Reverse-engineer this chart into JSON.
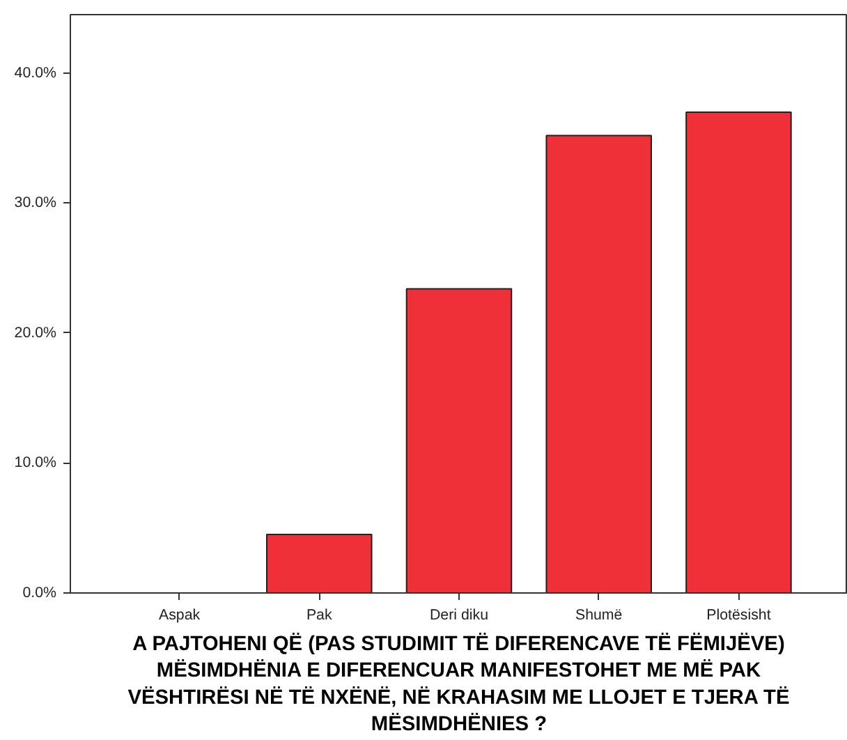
{
  "chart_data": {
    "type": "bar",
    "xlabel": "A PAJTOHENI QË (PAS STUDIMIT TË DIFERENCAVE TË FËMIJËVE) MËSIMDHËNIA E DIFERENCUAR MANIFESTOHET ME MË PAK VËSHTIRËSI NË TË NXËNË, NË KRAHASIM ME LLOJET E TJERA TË MËSIMDHËNIES ?",
    "categories": [
      "Aspak",
      "Pak",
      "Deri diku",
      "Shumë",
      "Plotësisht"
    ],
    "values": [
      0,
      4.5,
      23.4,
      35.2,
      37.0
    ],
    "color": "#ef3038",
    "ylim": [
      0,
      44.5
    ],
    "yticks": [
      {
        "value": 0,
        "label": "0.0%"
      },
      {
        "value": 10,
        "label": "10.0%"
      },
      {
        "value": 20,
        "label": "20.0%"
      },
      {
        "value": 30,
        "label": "30.0%"
      },
      {
        "value": 40,
        "label": "40.0%"
      }
    ],
    "grid": false
  }
}
